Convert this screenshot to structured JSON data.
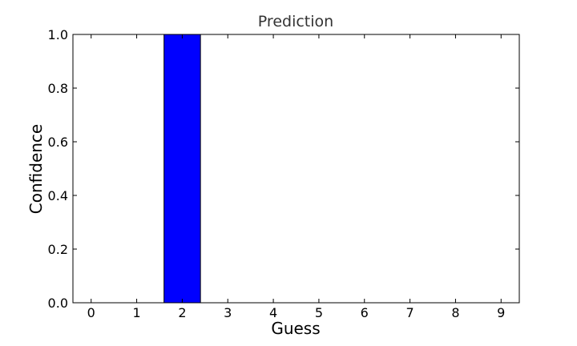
{
  "chart_data": {
    "type": "bar",
    "title": "Prediction",
    "xlabel": "Guess",
    "ylabel": "Confidence",
    "categories": [
      "0",
      "1",
      "2",
      "3",
      "4",
      "5",
      "6",
      "7",
      "8",
      "9"
    ],
    "values": [
      0,
      0,
      1.0,
      0,
      0,
      0,
      0,
      0,
      0,
      0
    ],
    "ylim": [
      0,
      1.0
    ],
    "yticks": [
      "0.0",
      "0.2",
      "0.4",
      "0.6",
      "0.8",
      "1.0"
    ],
    "grid": false,
    "bar_color": "#0000ff"
  }
}
